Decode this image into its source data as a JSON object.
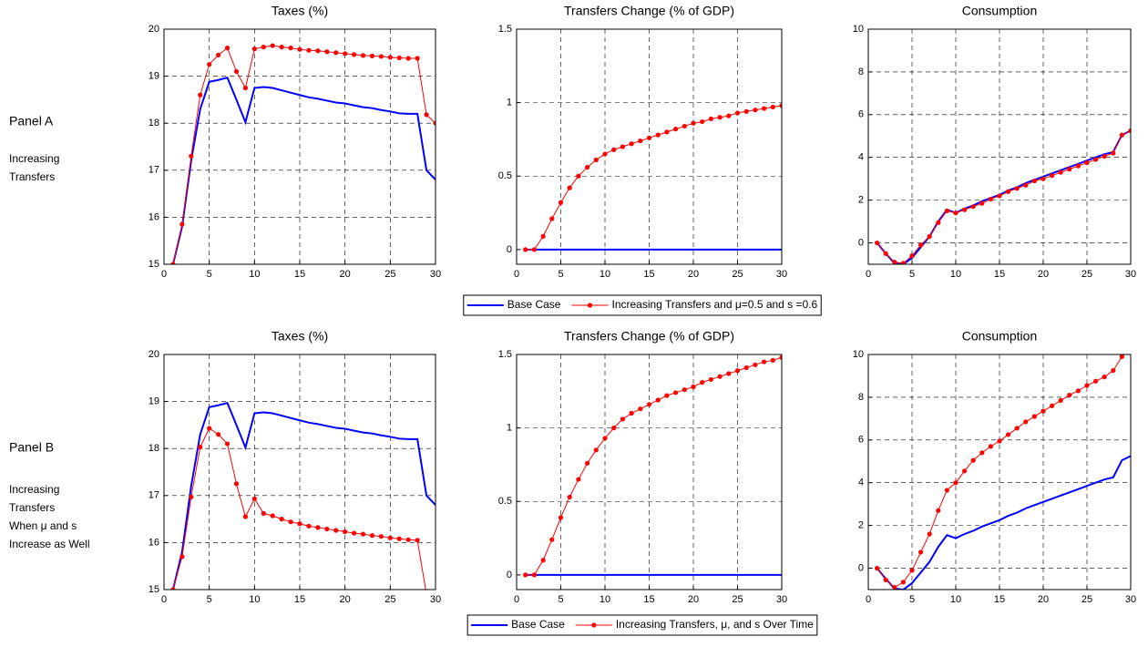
{
  "panels": [
    {
      "label": "Panel A",
      "description": [
        "Increasing",
        "Transfers"
      ]
    },
    {
      "label": "Panel B",
      "description": [
        "Increasing",
        "Transfers",
        "When μ and s",
        "Increase as Well"
      ]
    }
  ],
  "chart_data": [
    {
      "type": "line",
      "title": "Taxes (%)",
      "x": [
        1,
        2,
        3,
        4,
        5,
        6,
        7,
        8,
        9,
        10,
        11,
        12,
        13,
        14,
        15,
        16,
        17,
        18,
        19,
        20,
        21,
        22,
        23,
        24,
        25,
        26,
        27,
        28,
        29,
        30
      ],
      "series": [
        {
          "name": "Base Case",
          "color": "#0000ff",
          "values": [
            15,
            15.8,
            17.2,
            18.3,
            18.88,
            18.92,
            18.97,
            18.5,
            18.02,
            18.75,
            18.77,
            18.75,
            18.7,
            18.65,
            18.6,
            18.55,
            18.52,
            18.48,
            18.44,
            18.42,
            18.38,
            18.34,
            18.32,
            18.28,
            18.25,
            18.21,
            18.2,
            18.2,
            17.0,
            16.8
          ]
        },
        {
          "name": "Increasing Transfers and μ=0.5 and s =0.6",
          "color": "#ff0000",
          "marker": "o",
          "values": [
            15,
            15.85,
            17.3,
            18.6,
            19.25,
            19.45,
            19.6,
            19.1,
            18.75,
            19.58,
            19.62,
            19.65,
            19.62,
            19.6,
            19.57,
            19.55,
            19.54,
            19.52,
            19.5,
            19.48,
            19.46,
            19.44,
            19.43,
            19.42,
            19.4,
            19.39,
            19.38,
            19.38,
            18.18,
            18.0
          ]
        }
      ],
      "xlim": [
        0,
        30
      ],
      "xticks": [
        0,
        5,
        10,
        15,
        20,
        25,
        30
      ],
      "ylim": [
        15,
        20
      ],
      "yticks": [
        15,
        16,
        17,
        18,
        19,
        20
      ],
      "grid": true
    },
    {
      "type": "line",
      "title": "Transfers Change (% of GDP)",
      "x": [
        1,
        2,
        3,
        4,
        5,
        6,
        7,
        8,
        9,
        10,
        11,
        12,
        13,
        14,
        15,
        16,
        17,
        18,
        19,
        20,
        21,
        22,
        23,
        24,
        25,
        26,
        27,
        28,
        29,
        30
      ],
      "series": [
        {
          "color": "#0000ff",
          "values": [
            0,
            0,
            0,
            0,
            0,
            0,
            0,
            0,
            0,
            0,
            0,
            0,
            0,
            0,
            0,
            0,
            0,
            0,
            0,
            0,
            0,
            0,
            0,
            0,
            0,
            0,
            0,
            0,
            0,
            0
          ]
        },
        {
          "color": "#ff0000",
          "marker": "o",
          "values": [
            0,
            0,
            0.09,
            0.21,
            0.32,
            0.42,
            0.5,
            0.56,
            0.61,
            0.65,
            0.68,
            0.7,
            0.72,
            0.74,
            0.76,
            0.78,
            0.8,
            0.82,
            0.84,
            0.86,
            0.87,
            0.89,
            0.9,
            0.91,
            0.93,
            0.94,
            0.95,
            0.96,
            0.97,
            0.98
          ]
        }
      ],
      "xlim": [
        0,
        30
      ],
      "xticks": [
        0,
        5,
        10,
        15,
        20,
        25,
        30
      ],
      "ylim": [
        -0.1,
        1.5
      ],
      "yticks": [
        0,
        0.5,
        1,
        1.5
      ],
      "grid": true
    },
    {
      "type": "line",
      "title": "Consumption",
      "x": [
        1,
        2,
        3,
        4,
        5,
        6,
        7,
        8,
        9,
        10,
        11,
        12,
        13,
        14,
        15,
        16,
        17,
        18,
        19,
        20,
        21,
        22,
        23,
        24,
        25,
        26,
        27,
        28,
        29,
        30
      ],
      "series": [
        {
          "color": "#0000ff",
          "values": [
            0,
            -0.5,
            -0.95,
            -1.0,
            -0.7,
            -0.2,
            0.3,
            1.0,
            1.55,
            1.4,
            1.6,
            1.75,
            1.95,
            2.1,
            2.25,
            2.45,
            2.6,
            2.8,
            2.95,
            3.1,
            3.25,
            3.4,
            3.55,
            3.7,
            3.85,
            4.0,
            4.15,
            4.25,
            5.05,
            5.25
          ]
        },
        {
          "color": "#ff0000",
          "marker": "o",
          "values": [
            0,
            -0.5,
            -0.9,
            -0.95,
            -0.6,
            -0.1,
            0.3,
            0.95,
            1.5,
            1.4,
            1.55,
            1.7,
            1.85,
            2.05,
            2.2,
            2.4,
            2.55,
            2.7,
            2.9,
            3.0,
            3.15,
            3.3,
            3.45,
            3.6,
            3.75,
            3.9,
            4.05,
            4.2,
            5.05,
            5.25
          ]
        }
      ],
      "xlim": [
        0,
        30
      ],
      "xticks": [
        0,
        5,
        10,
        15,
        20,
        25,
        30
      ],
      "ylim": [
        -1,
        10
      ],
      "yticks": [
        0,
        2,
        4,
        6,
        8,
        10
      ],
      "grid": true
    },
    {
      "type": "line",
      "title": "Taxes (%)",
      "x": [
        1,
        2,
        3,
        4,
        5,
        6,
        7,
        8,
        9,
        10,
        11,
        12,
        13,
        14,
        15,
        16,
        17,
        18,
        19,
        20,
        21,
        22,
        23,
        24,
        25,
        26,
        27,
        28,
        29,
        30
      ],
      "series": [
        {
          "name": "Base Case",
          "color": "#0000ff",
          "values": [
            15,
            15.8,
            17.2,
            18.3,
            18.88,
            18.92,
            18.97,
            18.5,
            18.02,
            18.75,
            18.77,
            18.75,
            18.7,
            18.65,
            18.6,
            18.55,
            18.52,
            18.48,
            18.44,
            18.42,
            18.38,
            18.34,
            18.32,
            18.28,
            18.25,
            18.21,
            18.2,
            18.2,
            17.0,
            16.8
          ]
        },
        {
          "name": "Increasing Transfers, μ, and s Over Time",
          "color": "#ff0000",
          "marker": "o",
          "values": [
            15,
            15.7,
            16.97,
            18.03,
            18.43,
            18.3,
            18.1,
            17.25,
            16.55,
            16.93,
            16.62,
            16.57,
            16.5,
            16.44,
            16.4,
            16.35,
            16.32,
            16.29,
            16.26,
            16.23,
            16.2,
            16.18,
            16.15,
            16.13,
            16.1,
            16.08,
            16.06,
            16.05,
            14.9,
            14.6
          ]
        }
      ],
      "xlim": [
        0,
        30
      ],
      "xticks": [
        0,
        5,
        10,
        15,
        20,
        25,
        30
      ],
      "ylim": [
        15,
        20
      ],
      "yticks": [
        15,
        16,
        17,
        18,
        19,
        20
      ],
      "grid": true
    },
    {
      "type": "line",
      "title": "Transfers Change (% of GDP)",
      "x": [
        1,
        2,
        3,
        4,
        5,
        6,
        7,
        8,
        9,
        10,
        11,
        12,
        13,
        14,
        15,
        16,
        17,
        18,
        19,
        20,
        21,
        22,
        23,
        24,
        25,
        26,
        27,
        28,
        29,
        30
      ],
      "series": [
        {
          "color": "#0000ff",
          "values": [
            0,
            0,
            0,
            0,
            0,
            0,
            0,
            0,
            0,
            0,
            0,
            0,
            0,
            0,
            0,
            0,
            0,
            0,
            0,
            0,
            0,
            0,
            0,
            0,
            0,
            0,
            0,
            0,
            0,
            0
          ]
        },
        {
          "color": "#ff0000",
          "marker": "o",
          "values": [
            0,
            0,
            0.1,
            0.24,
            0.39,
            0.53,
            0.65,
            0.76,
            0.85,
            0.93,
            1.0,
            1.06,
            1.1,
            1.13,
            1.16,
            1.19,
            1.22,
            1.24,
            1.26,
            1.28,
            1.31,
            1.33,
            1.35,
            1.37,
            1.39,
            1.41,
            1.43,
            1.45,
            1.46,
            1.48
          ]
        }
      ],
      "xlim": [
        0,
        30
      ],
      "xticks": [
        0,
        5,
        10,
        15,
        20,
        25,
        30
      ],
      "ylim": [
        -0.1,
        1.5
      ],
      "yticks": [
        0,
        0.5,
        1,
        1.5
      ],
      "grid": true
    },
    {
      "type": "line",
      "title": "Consumption",
      "x": [
        1,
        2,
        3,
        4,
        5,
        6,
        7,
        8,
        9,
        10,
        11,
        12,
        13,
        14,
        15,
        16,
        17,
        18,
        19,
        20,
        21,
        22,
        23,
        24,
        25,
        26,
        27,
        28,
        29,
        30
      ],
      "series": [
        {
          "color": "#0000ff",
          "values": [
            0,
            -0.5,
            -0.95,
            -1.0,
            -0.7,
            -0.2,
            0.3,
            1.0,
            1.55,
            1.4,
            1.6,
            1.75,
            1.95,
            2.1,
            2.25,
            2.45,
            2.6,
            2.8,
            2.95,
            3.1,
            3.25,
            3.4,
            3.55,
            3.7,
            3.85,
            4.0,
            4.15,
            4.25,
            5.05,
            5.25
          ]
        },
        {
          "color": "#ff0000",
          "marker": "o",
          "values": [
            0,
            -0.55,
            -0.9,
            -0.65,
            -0.1,
            0.75,
            1.6,
            2.7,
            3.65,
            4.0,
            4.55,
            5.05,
            5.4,
            5.7,
            5.95,
            6.25,
            6.55,
            6.85,
            7.1,
            7.35,
            7.6,
            7.85,
            8.1,
            8.3,
            8.55,
            8.75,
            8.95,
            9.25,
            9.9,
            10.3
          ]
        }
      ],
      "xlim": [
        0,
        30
      ],
      "xticks": [
        0,
        5,
        10,
        15,
        20,
        25,
        30
      ],
      "ylim": [
        -1,
        10
      ],
      "yticks": [
        0,
        2,
        4,
        6,
        8,
        10
      ],
      "grid": true
    }
  ]
}
